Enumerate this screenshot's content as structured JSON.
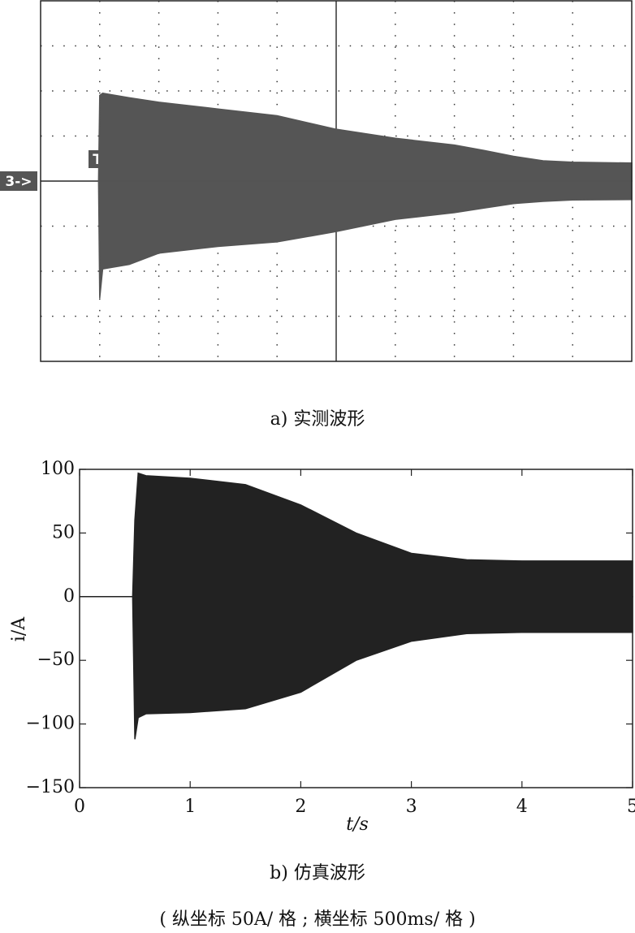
{
  "chart_data": [
    {
      "type": "area",
      "caption": "a) 实测波形",
      "channel_marker": "3->",
      "trigger_marker": "T",
      "xlim": [
        0,
        10
      ],
      "ylim": [
        -4,
        4
      ],
      "grid": true,
      "x": [
        0,
        0.98,
        1.0,
        1.05,
        1.5,
        2,
        3,
        4,
        5,
        6,
        7,
        7.5,
        8,
        8.5,
        9,
        10
      ],
      "series": [
        {
          "color": "#555555",
          "values": [
            0,
            0,
            1.9,
            1.95,
            1.85,
            1.75,
            1.6,
            1.45,
            1.15,
            0.95,
            0.8,
            0.68,
            0.55,
            0.45,
            0.42,
            0.4
          ]
        },
        {
          "color": "#555555",
          "values": [
            0,
            0,
            -2.6,
            -1.95,
            -1.85,
            -1.6,
            -1.45,
            -1.35,
            -1.12,
            -0.85,
            -0.7,
            -0.6,
            -0.5,
            -0.45,
            -0.42,
            -0.41
          ]
        }
      ]
    },
    {
      "type": "area",
      "caption": "b) 仿真波形",
      "note": "( 纵坐标 50A/ 格 ; 横坐标 500ms/ 格 )",
      "xlabel": "t/s",
      "ylabel": "i/A",
      "xlim": [
        0,
        5
      ],
      "ylim": [
        -150,
        100
      ],
      "xticks": [
        0,
        1,
        2,
        3,
        4,
        5
      ],
      "yticks": [
        {
          "value": -150,
          "label": "−150"
        },
        {
          "value": -100,
          "label": "−100"
        },
        {
          "value": -50,
          "label": "−50"
        },
        0,
        50,
        100
      ],
      "x": [
        0,
        0.48,
        0.5,
        0.53,
        0.6,
        1.0,
        1.5,
        2.0,
        2.5,
        3.0,
        3.5,
        4.0,
        4.5,
        5.0
      ],
      "series": [
        {
          "color": "#222222",
          "values": [
            0,
            0,
            60,
            97,
            95,
            93,
            88,
            72,
            50,
            34,
            29,
            28,
            28,
            28
          ]
        },
        {
          "color": "#222222",
          "values": [
            0,
            0,
            -112,
            -95,
            -92,
            -91,
            -88,
            -75,
            -50,
            -35,
            -29,
            -28,
            -28,
            -28
          ]
        }
      ]
    }
  ]
}
